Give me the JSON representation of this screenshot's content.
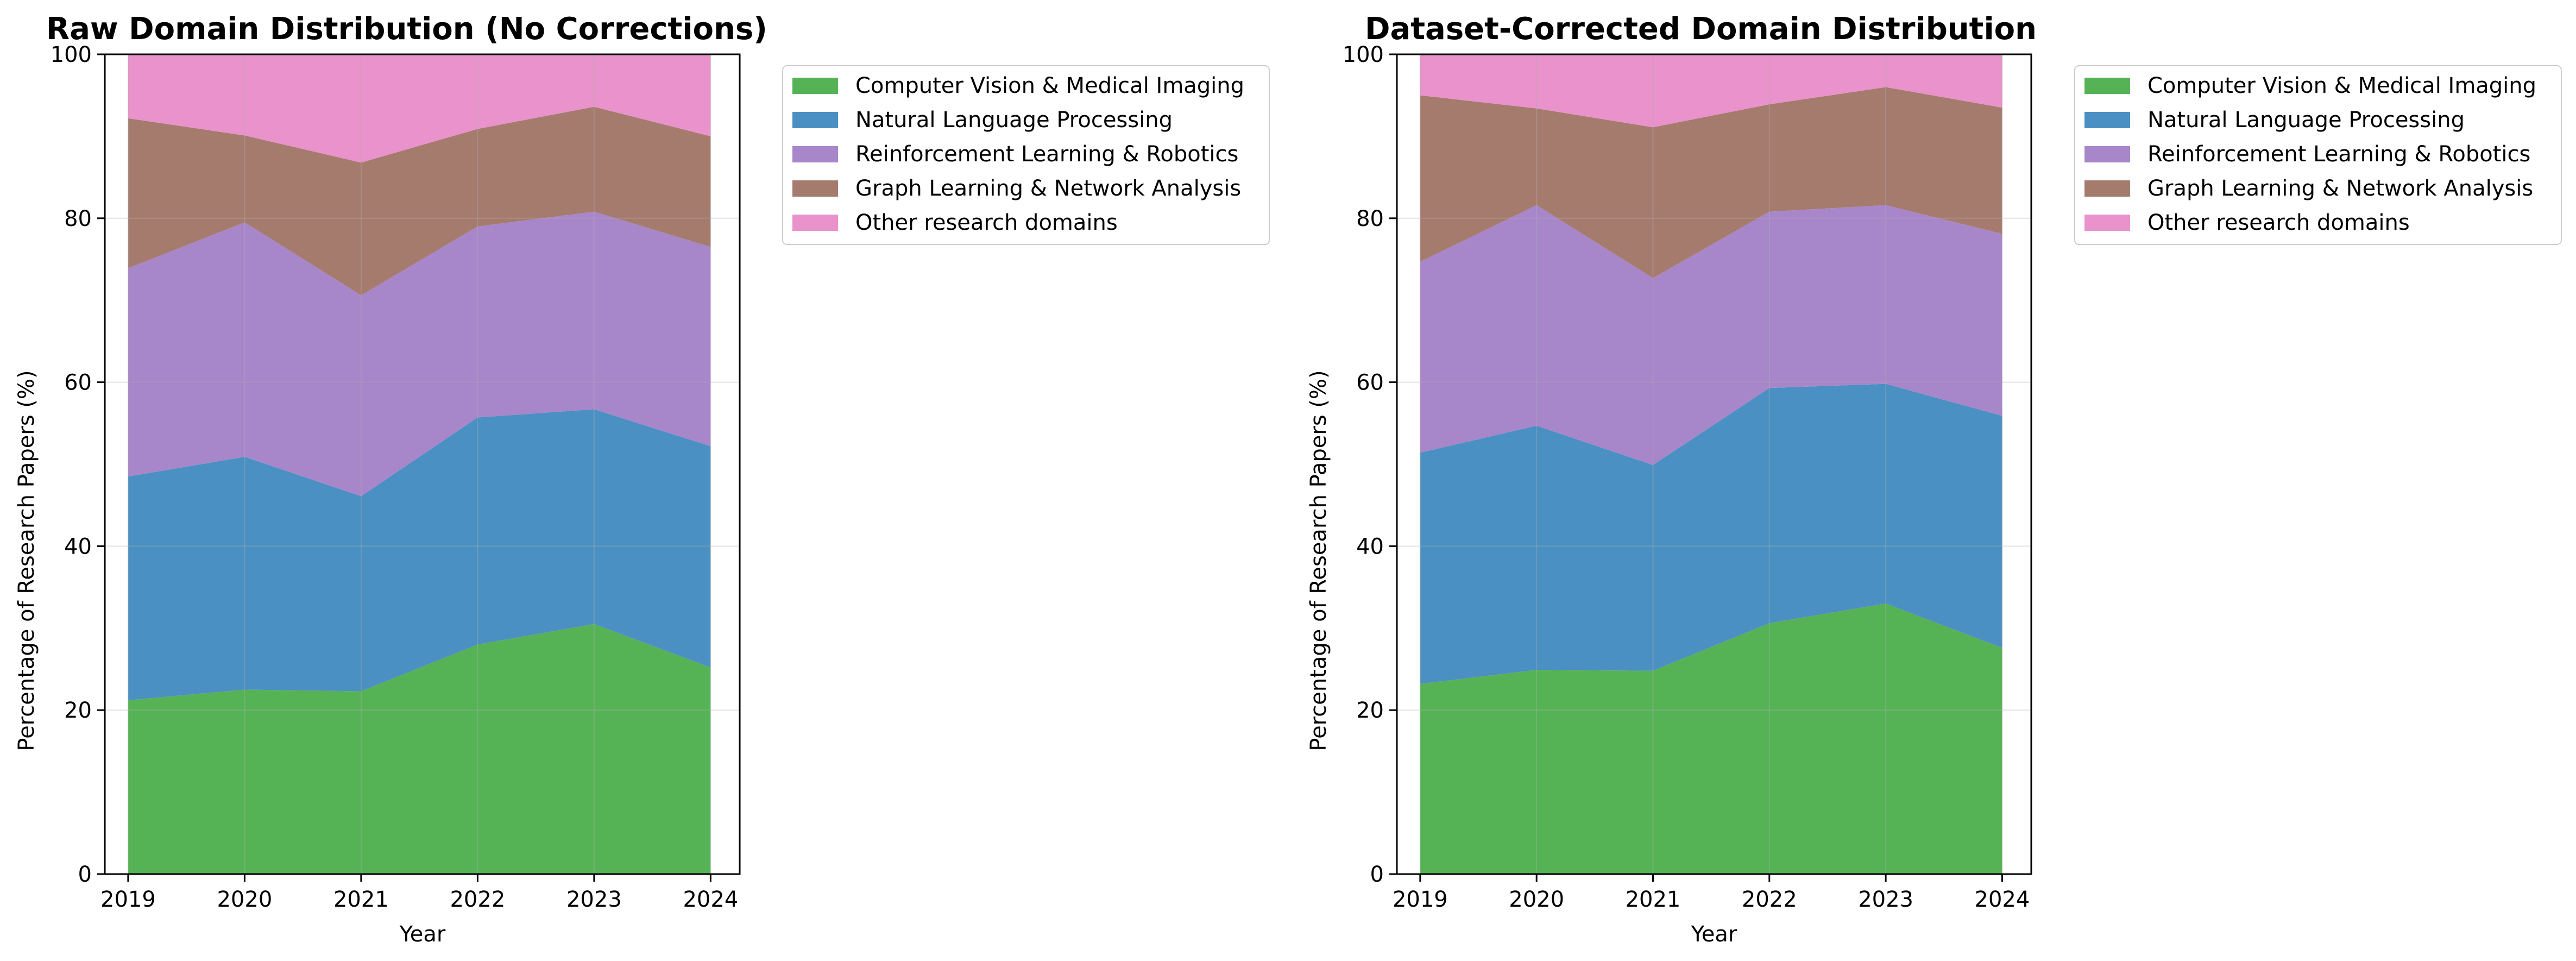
{
  "chart_data": [
    {
      "type": "area",
      "stacked": true,
      "title": "Raw Domain Distribution (No Corrections)",
      "xlabel": "Year",
      "ylabel": "Percentage of Research Papers (%)",
      "x": [
        "2019",
        "2020",
        "2021",
        "2022",
        "2023",
        "2024"
      ],
      "xlim": [
        2018.8,
        2024.25
      ],
      "ylim": [
        0,
        100
      ],
      "yticks": [
        "0",
        "20",
        "40",
        "60",
        "80",
        "100"
      ],
      "grid": true,
      "legend_position": "outside-top-right",
      "series": [
        {
          "name": "Computer Vision & Medical Imaging",
          "color": "#55b355",
          "values": [
            21.2,
            22.5,
            22.3,
            28.0,
            30.5,
            25.2
          ]
        },
        {
          "name": "Natural Language Processing",
          "color": "#4a90c2",
          "values": [
            27.3,
            28.4,
            23.8,
            27.7,
            26.2,
            27.0
          ]
        },
        {
          "name": "Reinforcement Learning & Robotics",
          "color": "#a886ca",
          "values": [
            25.4,
            28.6,
            24.5,
            23.3,
            24.1,
            24.3
          ]
        },
        {
          "name": "Graph Learning & Network Analysis",
          "color": "#a57b6e",
          "values": [
            18.3,
            10.6,
            16.2,
            11.9,
            12.8,
            13.5
          ]
        },
        {
          "name": "Other research domains",
          "color": "#e992cb",
          "values": [
            7.8,
            9.9,
            13.2,
            9.1,
            6.4,
            10.0
          ]
        }
      ]
    },
    {
      "type": "area",
      "stacked": true,
      "title": "Dataset-Corrected Domain Distribution",
      "xlabel": "Year",
      "ylabel": "Percentage of Research Papers (%)",
      "x": [
        "2019",
        "2020",
        "2021",
        "2022",
        "2023",
        "2024"
      ],
      "xlim": [
        2018.8,
        2024.25
      ],
      "ylim": [
        0,
        100
      ],
      "yticks": [
        "0",
        "20",
        "40",
        "60",
        "80",
        "100"
      ],
      "grid": true,
      "legend_position": "outside-top-right",
      "series": [
        {
          "name": "Computer Vision & Medical Imaging",
          "color": "#55b355",
          "values": [
            23.2,
            24.9,
            24.8,
            30.6,
            33.0,
            27.6
          ]
        },
        {
          "name": "Natural Language Processing",
          "color": "#4a90c2",
          "values": [
            28.2,
            29.8,
            25.1,
            28.7,
            26.8,
            28.3
          ]
        },
        {
          "name": "Reinforcement Learning & Robotics",
          "color": "#a886ca",
          "values": [
            23.3,
            26.9,
            22.8,
            21.5,
            21.8,
            22.2
          ]
        },
        {
          "name": "Graph Learning & Network Analysis",
          "color": "#a57b6e",
          "values": [
            20.3,
            11.8,
            18.4,
            13.1,
            14.4,
            15.4
          ]
        },
        {
          "name": "Other research domains",
          "color": "#e992cb",
          "values": [
            5.0,
            6.6,
            8.9,
            6.1,
            4.0,
            6.5
          ]
        }
      ]
    }
  ]
}
